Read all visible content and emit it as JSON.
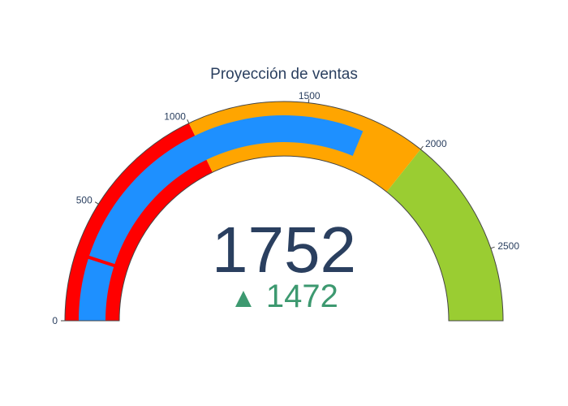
{
  "chart_data": {
    "type": "gauge",
    "title": "Proyección de ventas",
    "value": 1752,
    "delta": {
      "value": 1472,
      "symbol": "▲",
      "color": "#3d9970"
    },
    "axis": {
      "range": [
        0,
        2800
      ],
      "tick_values": [
        0,
        500,
        1000,
        1500,
        2000,
        2500
      ],
      "tick_labels": [
        "0",
        "500",
        "1000",
        "1500",
        "2000",
        "2500"
      ]
    },
    "steps": [
      {
        "range": [
          0,
          1000
        ],
        "color": "#ff0000"
      },
      {
        "range": [
          1000,
          2000
        ],
        "color": "#ffa500"
      },
      {
        "range": [
          2000,
          2800
        ],
        "color": "#9acd32"
      }
    ],
    "bar": {
      "value": 1752,
      "color": "#1e90ff"
    },
    "threshold": {
      "value": 280,
      "color": "#ff0000"
    },
    "number_color": "#2a3f5f",
    "outline_color": "#444444"
  }
}
